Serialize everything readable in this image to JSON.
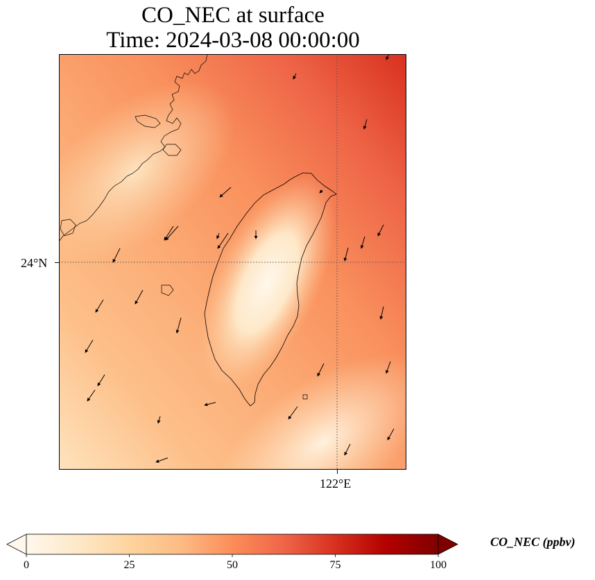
{
  "title": {
    "line1": "CO_NEC at surface",
    "line2": "Time: 2024-03-08 00:00:00"
  },
  "map": {
    "gridline_style": "dotted",
    "lat_label": "24°N",
    "lon_label": "122°E",
    "coastline_color": "#000000",
    "wind_vector_color": "#000000"
  },
  "colorbar": {
    "title": "CO_NEC (ppbv)",
    "tick_labels": [
      "0",
      "25",
      "50",
      "75",
      "100"
    ],
    "ticks": [
      0,
      25,
      50,
      75,
      100
    ],
    "range": [
      0,
      100
    ],
    "extend": "both",
    "colormap": "OrRd",
    "color_stops": [
      "#fff7ec",
      "#fee8c8",
      "#fdd49e",
      "#fdbb84",
      "#fc8d59",
      "#ef6548",
      "#d7301f",
      "#b30000",
      "#7f0000"
    ]
  }
}
